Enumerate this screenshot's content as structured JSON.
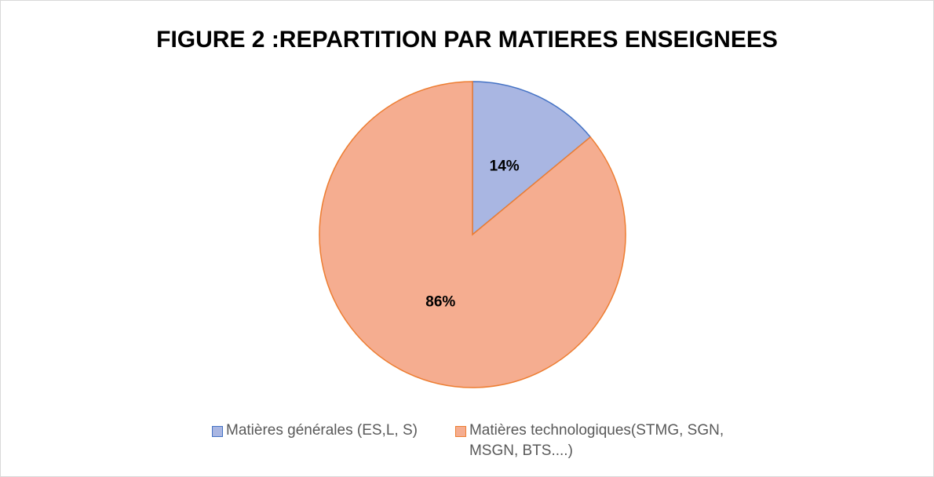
{
  "chart_data": {
    "type": "pie",
    "title": "FIGURE 2 :REPARTITION PAR MATIERES ENSEIGNEES",
    "categories": [
      "Matières générales (ES,L, S)",
      "Matières technologiques(STMG, SGN, MSGN, BTS....)"
    ],
    "values": [
      14,
      86
    ],
    "value_labels": [
      "14%",
      "86%"
    ],
    "colors": [
      "#a9b6e2",
      "#f5ad90"
    ],
    "edge_colors": [
      "#4472c4",
      "#ed7d31"
    ],
    "legend": "bottom"
  }
}
